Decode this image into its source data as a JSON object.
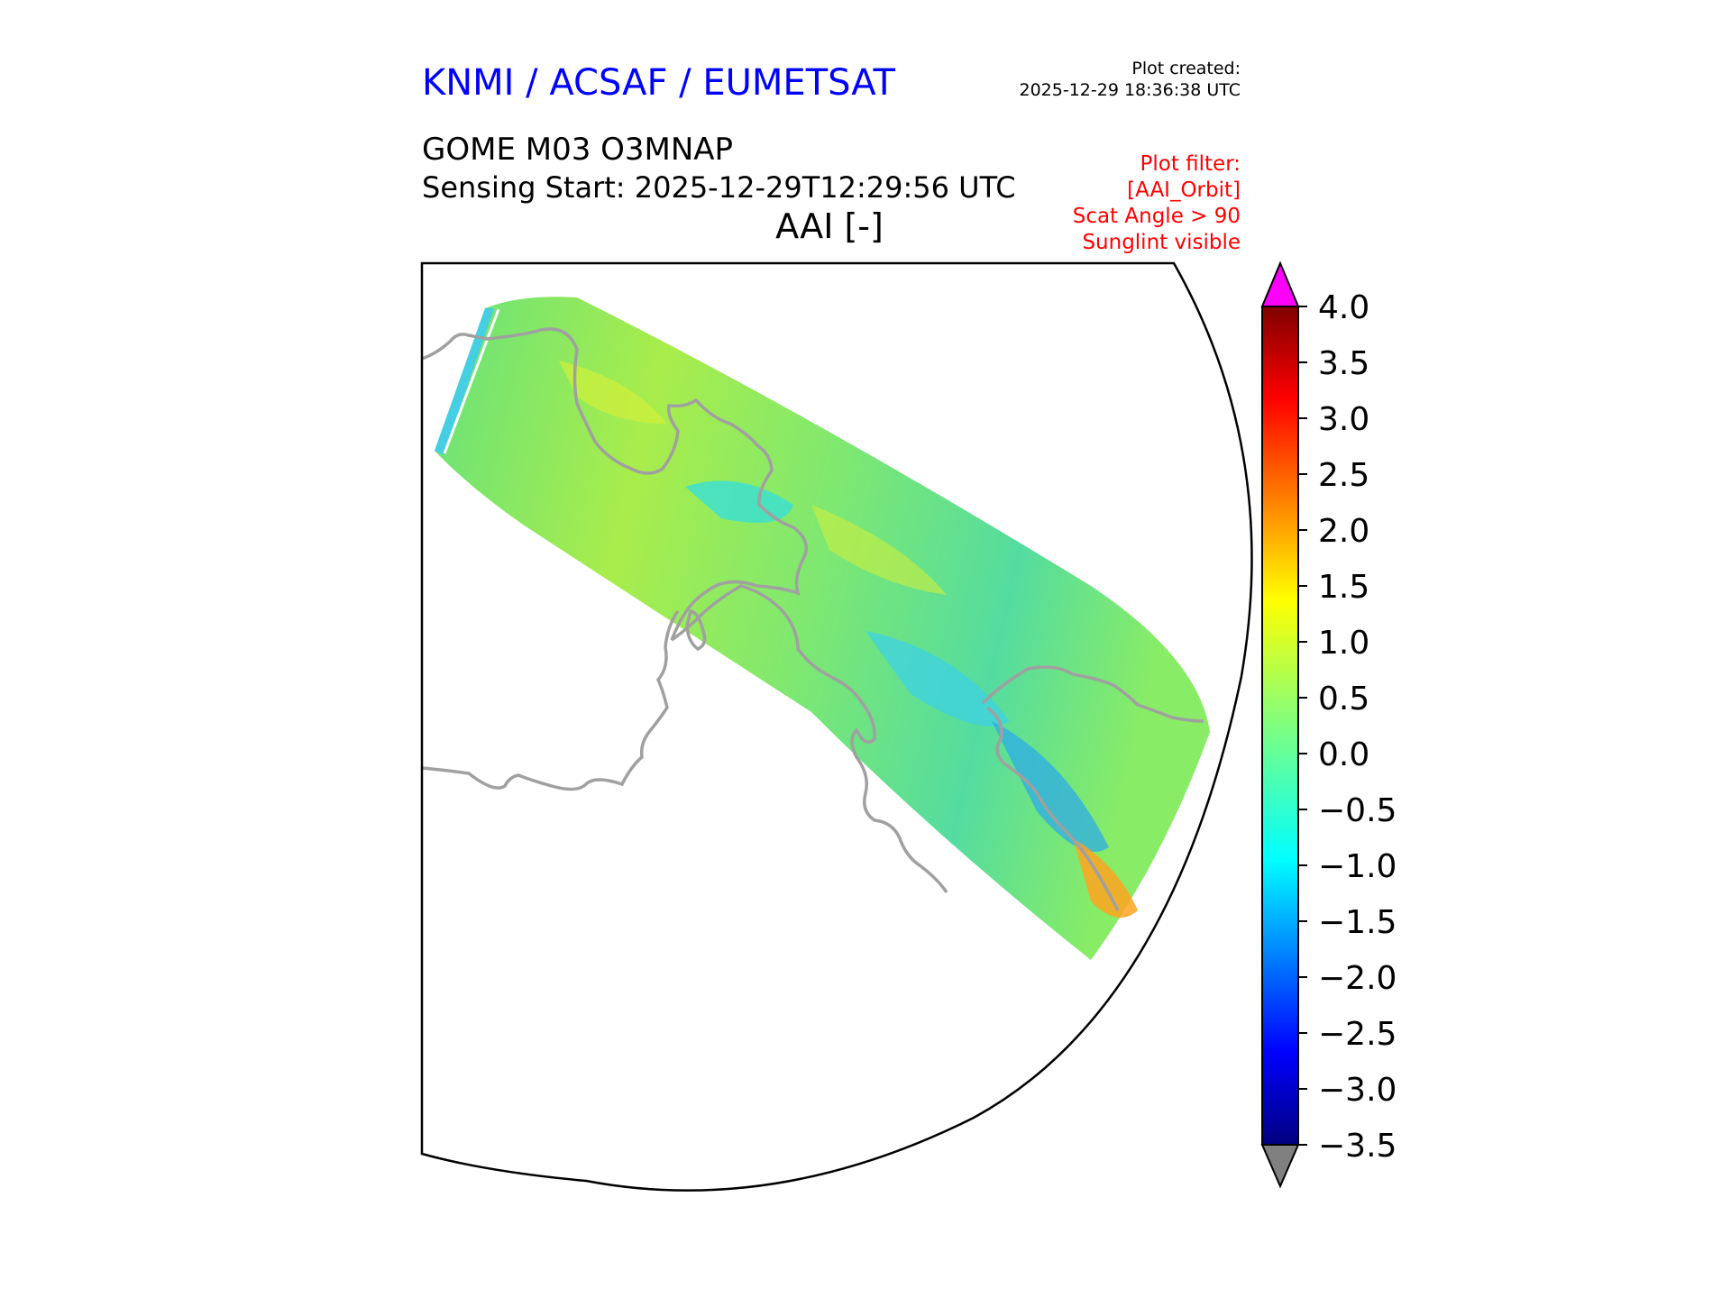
{
  "header": {
    "organization": "KNMI / ACSAF / EUMETSAT",
    "plot_created_label": "Plot created:",
    "plot_created_time": "2025-12-29 18:36:38 UTC",
    "product": "GOME M03 O3MNAP",
    "sensing_start": "Sensing Start: 2025-12-29T12:29:56 UTC",
    "variable": "AAI [-]",
    "filter_lines": [
      "Plot filter:",
      "[AAI_Orbit]",
      "Scat Angle > 90",
      "Sunglint visible"
    ]
  },
  "colors": {
    "organization": "#0000ff",
    "filter": "#ff0000",
    "coastline": "#a0a0a0",
    "over_extend": "#ff00ff",
    "under_extend": "#808080"
  },
  "chart_data": {
    "type": "heatmap",
    "variable": "AAI",
    "unit": "-",
    "colormap": "jet",
    "vmin": -3.5,
    "vmax": 4.0,
    "colorbar_ticks": [
      "4.0",
      "3.5",
      "3.0",
      "2.5",
      "2.0",
      "1.5",
      "1.0",
      "0.5",
      "0.0",
      "−0.5",
      "−1.0",
      "−1.5",
      "−2.0",
      "−2.5",
      "−3.0",
      "−3.5"
    ],
    "extend": "both",
    "map_projection": "polar stereographic (south)"
  }
}
